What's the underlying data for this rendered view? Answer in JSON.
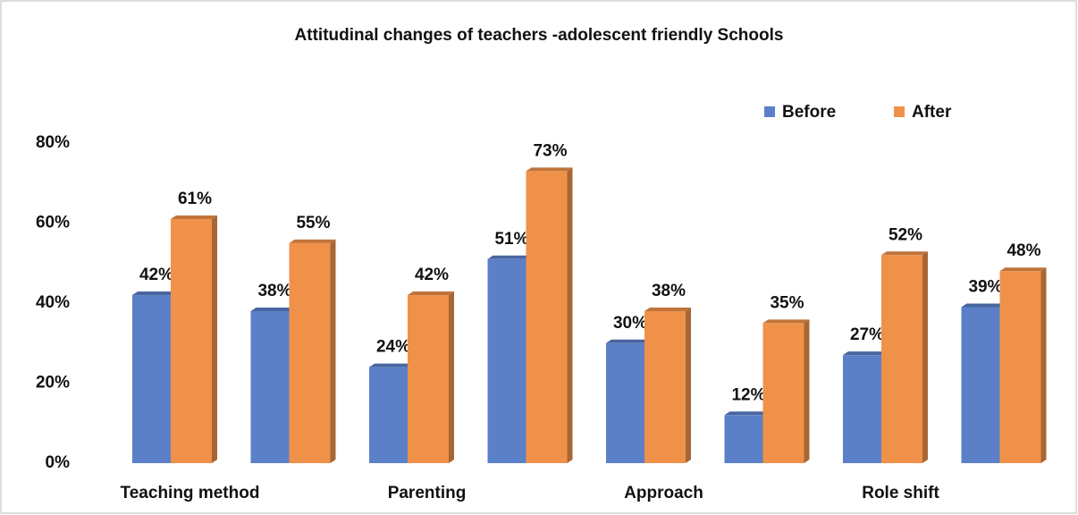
{
  "chart_data": {
    "type": "bar",
    "title": "Attitudinal changes of teachers -adolescent friendly Schools",
    "categories": [
      "Teaching method",
      null,
      "Parenting",
      null,
      "Approach",
      null,
      "Role shift",
      null
    ],
    "series": [
      {
        "name": "Before",
        "color": "#5b80c8",
        "values": [
          42,
          38,
          24,
          51,
          30,
          12,
          27,
          39
        ],
        "value_labels": [
          "42%",
          "38%",
          "24%",
          "51%",
          "30%",
          "12%",
          "27%",
          "39%"
        ]
      },
      {
        "name": "After",
        "color": "#f0914a",
        "values": [
          61,
          55,
          42,
          73,
          38,
          35,
          52,
          48
        ],
        "value_labels": [
          "61%",
          "55%",
          "42%",
          "73%",
          "38%",
          "35%",
          "52%",
          "48%"
        ]
      }
    ],
    "ylim": [
      0,
      80
    ],
    "yticks": [
      {
        "value": 0,
        "label": "0%"
      },
      {
        "value": 20,
        "label": "20%"
      },
      {
        "value": 40,
        "label": "40%"
      },
      {
        "value": 60,
        "label": "60%"
      },
      {
        "value": 80,
        "label": "80%"
      }
    ],
    "grid": false,
    "legend": "top-right"
  }
}
